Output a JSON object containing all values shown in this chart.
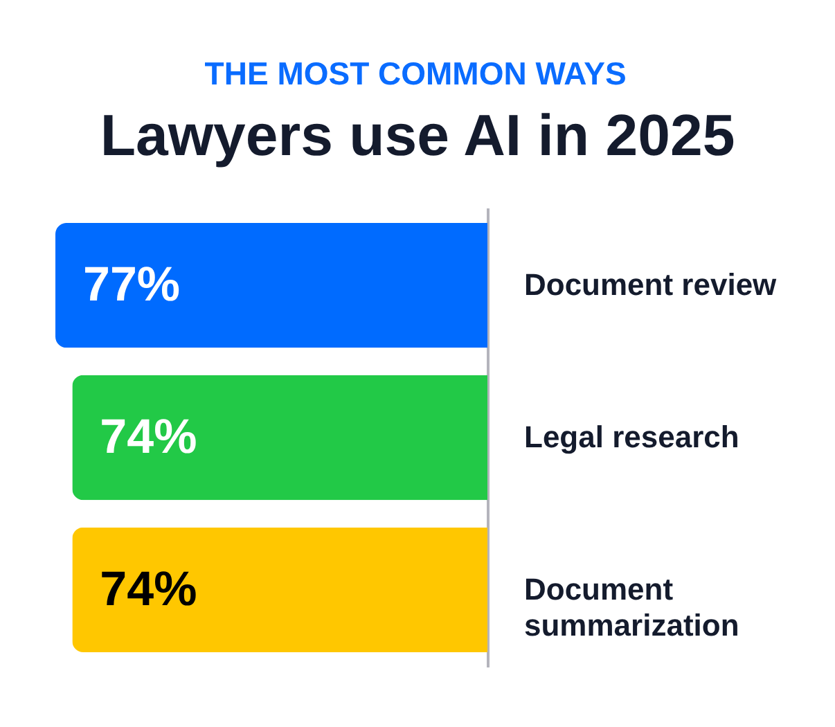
{
  "chart_data": {
    "type": "bar",
    "orientation": "horizontal",
    "subtitle": "THE MOST COMMON WAYS",
    "title": "Lawyers use AI in 2025",
    "categories": [
      "Document review",
      "Legal research",
      "Document summarization"
    ],
    "values": [
      77,
      74,
      74
    ],
    "colors": [
      "#006bff",
      "#22c947",
      "#ffc700"
    ],
    "value_labels": [
      "77%",
      "74%",
      "74%"
    ],
    "xlim": [
      77,
      0
    ],
    "tick_labels": "y",
    "grid": false,
    "legend": false
  }
}
